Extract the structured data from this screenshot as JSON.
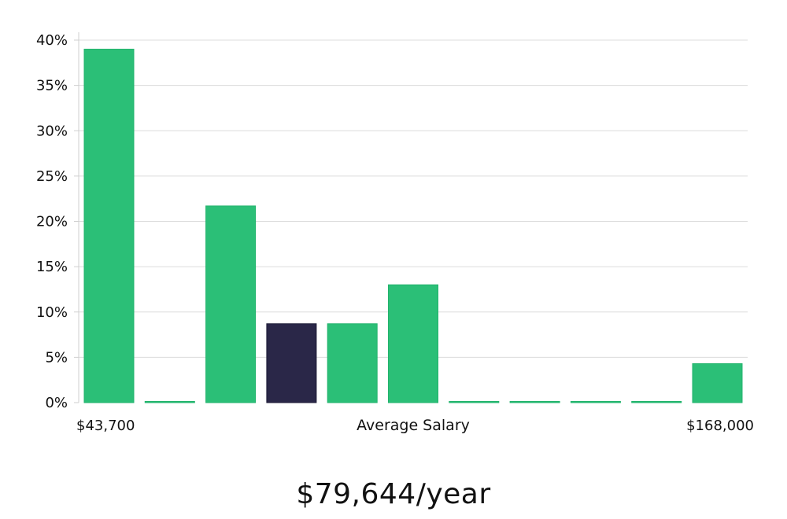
{
  "colors": {
    "bar": "#2bbf77",
    "bar_edge": "#22b36c",
    "highlight": "#2a2748",
    "grid": "#dcdcdc",
    "axis": "#cfcfcf",
    "text": "#111111"
  },
  "headline": "$79,644/year",
  "chart_data": {
    "type": "bar",
    "title": "",
    "xlabel": "Average Salary",
    "ylabel": "",
    "x_range_labels": {
      "min": "$43,700",
      "max": "$168,000"
    },
    "yticks": [
      0,
      5,
      10,
      15,
      20,
      25,
      30,
      35,
      40
    ],
    "ytick_labels": [
      "0%",
      "5%",
      "10%",
      "15%",
      "20%",
      "25%",
      "30%",
      "35%",
      "40%"
    ],
    "ylim": [
      0,
      40
    ],
    "grid": true,
    "highlight_index": 3,
    "values": [
      39,
      0,
      21.7,
      8.7,
      8.7,
      13,
      0,
      0,
      0,
      0,
      4.3
    ]
  }
}
